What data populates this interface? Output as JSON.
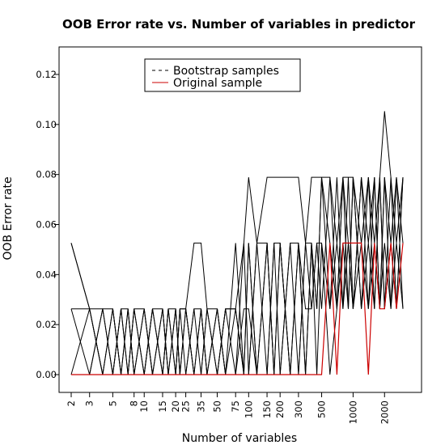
{
  "chart_data": {
    "type": "line",
    "title": "OOB Error rate vs. Number of variables in predictor",
    "xlabel": "Number of variables",
    "ylabel": "OOB Error rate",
    "x_scale": "log",
    "ylim": [
      0,
      0.13
    ],
    "x_tick_labels": [
      "2",
      "3",
      "5",
      "8",
      "10",
      "15",
      "20",
      "25",
      "35",
      "50",
      "75",
      "100",
      "150",
      "200",
      "300",
      "500",
      "1000",
      "2000"
    ],
    "y_ticks": [
      0.0,
      0.02,
      0.04,
      0.06,
      0.08,
      0.1,
      0.12
    ],
    "y_tick_labels": [
      "0.00",
      "0.02",
      "0.04",
      "0.06",
      "0.08",
      "0.10",
      "0.12"
    ],
    "legend": {
      "position": "top",
      "entries": [
        {
          "label": "Bootstrap samples",
          "style": "dashed",
          "color": "#000000"
        },
        {
          "label": "Original sample",
          "style": "solid",
          "color": "#cc0000"
        }
      ]
    },
    "x": [
      2,
      3,
      4,
      5,
      6,
      7,
      8,
      10,
      12,
      15,
      17,
      20,
      22,
      25,
      30,
      35,
      40,
      50,
      60,
      75,
      90,
      100,
      120,
      150,
      175,
      200,
      250,
      300,
      350,
      400,
      450,
      500,
      600,
      700,
      800,
      900,
      1000,
      1200,
      1400,
      1600,
      1800,
      2000,
      2300,
      2600,
      3000
    ],
    "series": [
      {
        "name": "Original sample",
        "color": "#cc0000",
        "values": [
          0,
          0,
          0,
          0,
          0,
          0,
          0,
          0,
          0,
          0,
          0,
          0,
          0,
          0,
          0,
          0,
          0,
          0,
          0,
          0,
          0,
          0,
          0,
          0,
          0,
          0,
          0,
          0,
          0,
          0,
          0,
          0,
          0.0526,
          0,
          0.0526,
          0.0526,
          0.0526,
          0.0526,
          0,
          0.0526,
          0.0263,
          0.0263,
          0.0526,
          0.0263,
          0.0526
        ]
      },
      {
        "color": "#000000",
        "values": [
          0.0526,
          0.0263,
          0,
          0.0263,
          0,
          0.0263,
          0,
          0.0263,
          0,
          0.0263,
          0,
          0.0263,
          0,
          0.0263,
          0,
          0.0263,
          0,
          0.0263,
          0,
          0.0526,
          0,
          0.0526,
          0,
          0.0526,
          0,
          0.0526,
          0,
          0.0526,
          0,
          0.0526,
          0.0263,
          0.0789,
          0.0263,
          0.0789,
          0.0263,
          0.0789,
          0.0263,
          0.0789,
          0.0263,
          0.0789,
          0.0263,
          0.0789,
          0.0263,
          0.0789,
          0.0526
        ]
      },
      {
        "color": "#000000",
        "values": [
          0.0263,
          0,
          0.0263,
          0,
          0.0263,
          0,
          0.0263,
          0,
          0.0263,
          0,
          0.0263,
          0,
          0.0263,
          0,
          0.0263,
          0,
          0.0263,
          0,
          0.0263,
          0,
          0.0526,
          0,
          0.0526,
          0,
          0.0526,
          0,
          0.0526,
          0,
          0.0526,
          0.0263,
          0.0526,
          0.0263,
          0.0789,
          0.0263,
          0.0789,
          0.0263,
          0.0789,
          0.0263,
          0.0789,
          0.0263,
          0.0789,
          0.0263,
          0.0789,
          0.0263,
          0.0789
        ]
      },
      {
        "color": "#000000",
        "values": [
          0,
          0.0263,
          0,
          0.0263,
          0,
          0.0263,
          0,
          0.0263,
          0,
          0.0263,
          0,
          0.0263,
          0,
          0.0263,
          0,
          0.0263,
          0,
          0.0263,
          0,
          0.0263,
          0,
          0.0526,
          0,
          0.0526,
          0,
          0.0526,
          0,
          0.0526,
          0,
          0.0526,
          0,
          0.0526,
          0.0263,
          0.0526,
          0.0263,
          0.0526,
          0.0263,
          0.0526,
          0.0263,
          0.0526,
          0.0263,
          0.0526,
          0.0263,
          0.0526,
          0.0263
        ]
      },
      {
        "color": "#000000",
        "values": [
          0.0526,
          0.0263,
          0.0263,
          0,
          0.0263,
          0,
          0.0263,
          0,
          0.0263,
          0,
          0.0263,
          0,
          0.0263,
          0.0263,
          0.0526,
          0.0526,
          0.0263,
          0,
          0.0263,
          0.0263,
          0.0526,
          0.0789,
          0.0526,
          0.0789,
          0.0789,
          0.0789,
          0.0789,
          0.0789,
          0.0526,
          0.0789,
          0.0789,
          0.0789,
          0.0789,
          0.0526,
          0.0789,
          0.0789,
          0.0789,
          0.0526,
          0.0789,
          0.0526,
          0.0789,
          0.1053,
          0.0789,
          0.0526,
          0.0789
        ]
      },
      {
        "color": "#000000",
        "values": [
          0,
          0,
          0.0263,
          0.0263,
          0,
          0,
          0.0263,
          0.0263,
          0,
          0,
          0.0263,
          0.0263,
          0,
          0,
          0.0263,
          0.0263,
          0,
          0,
          0.0263,
          0.0263,
          0,
          0,
          0.0526,
          0.0526,
          0,
          0,
          0.0526,
          0.0526,
          0.0263,
          0.0263,
          0.0526,
          0.0526,
          0,
          0.0263,
          0.0526,
          0.0263,
          0.0789,
          0.0263,
          0.0526,
          0.0263,
          0.0789,
          0.0263,
          0.0526,
          0.0789,
          0.0263
        ]
      },
      {
        "color": "#000000",
        "values": [
          0.0263,
          0.0263,
          0,
          0,
          0.0263,
          0.0263,
          0,
          0,
          0.0263,
          0.0263,
          0,
          0,
          0.0263,
          0.0263,
          0,
          0,
          0.0263,
          0.0263,
          0,
          0,
          0.0263,
          0.0263,
          0,
          0,
          0.0526,
          0.0526,
          0,
          0,
          0.0526,
          0.0526,
          0.0263,
          0.0789,
          0.0526,
          0.0263,
          0.0789,
          0.0526,
          0.0263,
          0.0789,
          0.0526,
          0.0789,
          0.0263,
          0.0789,
          0.0526,
          0.0263,
          0.0789
        ]
      }
    ]
  }
}
